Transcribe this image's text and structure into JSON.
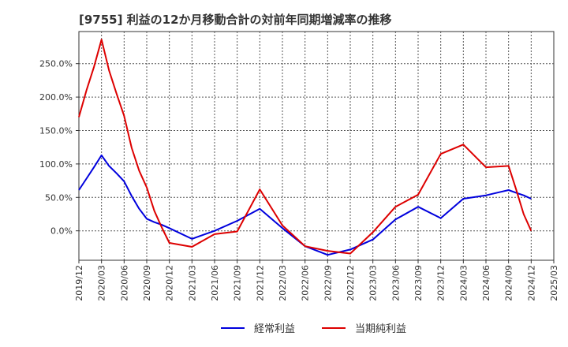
{
  "chart_data": {
    "type": "line",
    "title": "[9755]  利益の12か月移動合計の対前年同期増減率の推移",
    "xlabel": "",
    "ylabel": "",
    "ylim": [
      -0.44,
      2.98
    ],
    "y_ticks": [
      0,
      0.5,
      1.0,
      1.5,
      2.0,
      2.5
    ],
    "y_tick_labels": [
      "0.0%",
      "50.0%",
      "100.0%",
      "150.0%",
      "200.0%",
      "250.0%"
    ],
    "x_tick_labels": [
      "2019/12",
      "2020/03",
      "2020/06",
      "2020/09",
      "2020/12",
      "2021/03",
      "2021/06",
      "2021/09",
      "2021/12",
      "2022/03",
      "2022/06",
      "2022/09",
      "2022/12",
      "2023/03",
      "2023/06",
      "2023/09",
      "2023/12",
      "2024/03",
      "2024/06",
      "2024/09",
      "2024/12",
      "2025/03"
    ],
    "x": [
      "2019/12",
      "2020/01",
      "2020/02",
      "2020/03",
      "2020/04",
      "2020/05",
      "2020/06",
      "2020/07",
      "2020/08",
      "2020/09",
      "2020/10",
      "2020/11",
      "2020/12",
      "2021/03",
      "2021/06",
      "2021/09",
      "2021/12",
      "2022/03",
      "2022/06",
      "2022/09",
      "2022/12",
      "2023/03",
      "2023/06",
      "2023/09",
      "2023/12",
      "2024/03",
      "2024/06",
      "2024/09",
      "2024/10",
      "2024/11",
      "2024/12"
    ],
    "grid": true,
    "legend_position": "bottom-center",
    "series": [
      {
        "name": "経常利益",
        "color": "#0000dd",
        "values": [
          0.61,
          0.78,
          0.95,
          1.13,
          0.97,
          0.86,
          0.74,
          0.52,
          0.33,
          0.18,
          0.13,
          0.09,
          0.04,
          -0.12,
          0.0,
          0.15,
          0.33,
          0.04,
          -0.23,
          -0.36,
          -0.28,
          -0.13,
          0.17,
          0.36,
          0.19,
          0.48,
          0.53,
          0.61,
          0.57,
          0.53,
          0.48
        ]
      },
      {
        "name": "当期純利益",
        "color": "#dd0000",
        "values": [
          1.7,
          2.1,
          2.45,
          2.86,
          2.4,
          2.05,
          1.72,
          1.24,
          0.9,
          0.65,
          0.3,
          0.05,
          -0.18,
          -0.24,
          -0.05,
          -0.01,
          0.62,
          0.08,
          -0.23,
          -0.3,
          -0.34,
          -0.02,
          0.36,
          0.54,
          1.15,
          1.29,
          0.95,
          0.97,
          0.62,
          0.25,
          0.0
        ]
      }
    ]
  }
}
